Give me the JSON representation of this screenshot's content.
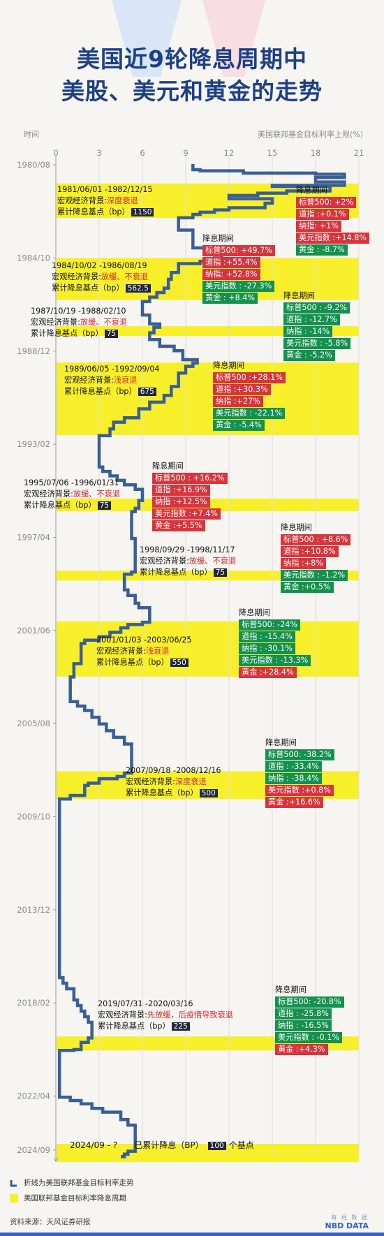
{
  "title_lines": [
    "美国近9轮降息周期中",
    "美股、美元和黄金的走势"
  ],
  "y_axis_label": "时间",
  "x_axis_label": "美国联邦基金目标利率上限(%)",
  "legend": {
    "line": "折线为美国联邦基金目标利率走势",
    "band": "美国联邦基金目标利率降息周期"
  },
  "source": "资料来源：天风证券研报",
  "brand": {
    "cn": "每 经 数 据",
    "en": "NBD DATA"
  },
  "colors": {
    "line": "#3a5e97",
    "band": "#f7ef2a",
    "up": "#d8343c",
    "down": "#14914e",
    "title": "#1c3f87"
  },
  "cycles": [
    {
      "period": "1981/06/01 -1982/12/15",
      "bg_prefix": "宏观经济背景:",
      "bg": "深度衰退",
      "bp_label": "累计降息基点（bp）",
      "bp": "1150"
    },
    {
      "period": "1984/10/02 -1986/08/19",
      "bg_prefix": "宏观经济背景:",
      "bg": "放缓、不衰退",
      "bp_label": "累计降息基点（bp）",
      "bp": "562.5"
    },
    {
      "period": "1987/10/19 -1988/02/10",
      "bg_prefix": "宏观经济背景:",
      "bg": "放缓、不衰退",
      "bp_label": "累计降息基点（bp）",
      "bp": "75"
    },
    {
      "period": "1989/06/05 -1992/09/04",
      "bg_prefix": "宏观经济背景:",
      "bg": "浅衰退",
      "bp_label": "累计降息基点（bp）",
      "bp": "675"
    },
    {
      "period": "1995/07/06 -1996/01/31",
      "bg_prefix": "宏观经济背景:",
      "bg": "放缓、不衰退",
      "bp_label": "累计降息基点（bp）",
      "bp": "75"
    },
    {
      "period": "1998/09/29 -1998/11/17",
      "bg_prefix": "宏观经济背景:",
      "bg": "放缓、不衰退",
      "bp_label": "累计降息基点（bp）",
      "bp": "75"
    },
    {
      "period": "2001/01/03 -2003/06/25",
      "bg_prefix": "宏观经济背景:",
      "bg": "浅衰退",
      "bp_label": "累计降息基点（bp）",
      "bp": "550"
    },
    {
      "period": "2007/09/18 -2008/12/16",
      "bg_prefix": "宏观经济背景:",
      "bg": "深度衰退",
      "bp_label": "累计降息基点（bp）",
      "bp": "500"
    },
    {
      "period": "2019/07/31 -2020/03/16",
      "bg_prefix": "宏观经济背景:",
      "bg": "先放缓，后疫情导致衰退",
      "bp_label": "累计降息基点（bp）",
      "bp": "225"
    }
  ],
  "current": {
    "period": "2024/09 - ?",
    "label": "已累计降息（BP）",
    "bp": "100",
    "suffix": "个基点"
  },
  "perf_heading": "降息期间",
  "performance": [
    [
      {
        "t": "标普500: +2%",
        "up": true
      },
      {
        "t": "道指 :+0.1%",
        "up": true
      },
      {
        "t": "纳指: +1%",
        "up": true
      },
      {
        "t": "美元指数 :+14.8%",
        "up": true
      },
      {
        "t": "黄金 : -8.7%",
        "up": false
      }
    ],
    [
      {
        "t": "标普500: +49.7%",
        "up": true
      },
      {
        "t": "道指 :+55.4%",
        "up": true
      },
      {
        "t": "纳指: +52.8%",
        "up": true
      },
      {
        "t": "美元指数 : -27.3%",
        "up": false
      },
      {
        "t": "黄金 : +8.4%",
        "up": false
      }
    ],
    [
      {
        "t": "标普500 : -9.2%",
        "up": false
      },
      {
        "t": "道指 : -12.7%",
        "up": false
      },
      {
        "t": "纳指 : -14%",
        "up": false
      },
      {
        "t": "美元指数 : -5.8%",
        "up": false
      },
      {
        "t": "黄金 : -5.2%",
        "up": false
      }
    ],
    [
      {
        "t": "标普500 :+28.1%",
        "up": true
      },
      {
        "t": "道指 :+30.3%",
        "up": true
      },
      {
        "t": "纳指 :+27%",
        "up": true
      },
      {
        "t": "美元指数 : -22.1%",
        "up": false
      },
      {
        "t": "黄金 : -5.4%",
        "up": false
      }
    ],
    [
      {
        "t": "标普500 : +16.2%",
        "up": true
      },
      {
        "t": "道指 :+16.9%",
        "up": true
      },
      {
        "t": "纳指 :+12.5%",
        "up": true
      },
      {
        "t": "美元指数 :+7.4%",
        "up": true
      },
      {
        "t": "黄金 :+5.5%",
        "up": true
      }
    ],
    [
      {
        "t": "标普500 : +8.6%",
        "up": true
      },
      {
        "t": "道指 :+10.8%",
        "up": true
      },
      {
        "t": "纳指 :+8%",
        "up": true
      },
      {
        "t": "美元指数 : -1.2%",
        "up": false
      },
      {
        "t": "黄金 :+0.5%",
        "up": false
      }
    ],
    [
      {
        "t": "标普500: -24%",
        "up": false
      },
      {
        "t": "道指 : -15.4%",
        "up": false
      },
      {
        "t": "纳指 : -30.1%",
        "up": false
      },
      {
        "t": "美元指数 : -13.3%",
        "up": false
      },
      {
        "t": "黄金 :+28.4%",
        "up": true
      }
    ],
    [
      {
        "t": "标普500: -38.2%",
        "up": false
      },
      {
        "t": "道指 : -33.4%",
        "up": false
      },
      {
        "t": "纳指 : -38.4%",
        "up": false
      },
      {
        "t": "美元指数 :+0.8%",
        "up": true
      },
      {
        "t": "黄金 :+16.6%",
        "up": true
      }
    ],
    [
      {
        "t": "标普500: -20.8%",
        "up": false
      },
      {
        "t": "道指 : -25.8%",
        "up": false
      },
      {
        "t": "纳指 : -16.5%",
        "up": false
      },
      {
        "t": "美元指数 : -0.1%",
        "up": false
      },
      {
        "t": "黄金 :+4.3%",
        "up": true
      }
    ]
  ],
  "chart_data": {
    "type": "line",
    "orientation": "vertical",
    "xlabel": "美国联邦基金目标利率上限(%)",
    "ylabel": "时间",
    "xlim": [
      0,
      21
    ],
    "x_ticks": [
      0,
      3,
      6,
      9,
      12,
      15,
      18,
      21
    ],
    "y_ticks": [
      "1980/08",
      "1984/10",
      "1988/12",
      "1993/02",
      "1997/04",
      "2001/06",
      "2005/08",
      "2009/10",
      "2013/12",
      "2018/02",
      "2022/04",
      "2024/09"
    ],
    "rate_series": [
      [
        1980.55,
        9.5
      ],
      [
        1980.8,
        10.0
      ],
      [
        1980.85,
        13.0
      ],
      [
        1980.95,
        18.0
      ],
      [
        1981.0,
        20.0
      ],
      [
        1981.15,
        18.0
      ],
      [
        1981.35,
        20.0
      ],
      [
        1981.5,
        15.0
      ],
      [
        1981.55,
        19.0
      ],
      [
        1981.75,
        16.0
      ],
      [
        1981.85,
        14.0
      ],
      [
        1981.95,
        12.0
      ],
      [
        1982.1,
        15.0
      ],
      [
        1982.3,
        14.5
      ],
      [
        1982.5,
        12.0
      ],
      [
        1982.6,
        11.0
      ],
      [
        1982.7,
        10.0
      ],
      [
        1982.8,
        9.5
      ],
      [
        1982.95,
        8.5
      ],
      [
        1983.2,
        8.5
      ],
      [
        1983.5,
        9.5
      ],
      [
        1983.9,
        9.5
      ],
      [
        1984.3,
        10.5
      ],
      [
        1984.55,
        11.5
      ],
      [
        1984.75,
        11.0
      ],
      [
        1984.9,
        10.0
      ],
      [
        1985.0,
        8.5
      ],
      [
        1985.4,
        8.0
      ],
      [
        1985.7,
        7.8
      ],
      [
        1986.1,
        7.5
      ],
      [
        1986.3,
        7.0
      ],
      [
        1986.5,
        6.5
      ],
      [
        1986.7,
        6.0
      ],
      [
        1987.0,
        6.0
      ],
      [
        1987.3,
        6.5
      ],
      [
        1987.7,
        7.2
      ],
      [
        1987.85,
        6.8
      ],
      [
        1988.1,
        6.5
      ],
      [
        1988.4,
        7.2
      ],
      [
        1988.7,
        8.2
      ],
      [
        1988.9,
        8.8
      ],
      [
        1989.3,
        9.8
      ],
      [
        1989.45,
        9.5
      ],
      [
        1989.6,
        9.0
      ],
      [
        1989.9,
        8.5
      ],
      [
        1990.5,
        8.0
      ],
      [
        1990.9,
        7.5
      ],
      [
        1991.2,
        6.5
      ],
      [
        1991.5,
        5.75
      ],
      [
        1991.9,
        4.75
      ],
      [
        1992.1,
        4.0
      ],
      [
        1992.4,
        3.75
      ],
      [
        1992.7,
        3.0
      ],
      [
        1993.5,
        3.0
      ],
      [
        1994.1,
        3.25
      ],
      [
        1994.3,
        3.75
      ],
      [
        1994.5,
        4.25
      ],
      [
        1994.7,
        4.75
      ],
      [
        1994.9,
        5.5
      ],
      [
        1995.1,
        6.0
      ],
      [
        1995.5,
        6.0
      ],
      [
        1995.6,
        5.75
      ],
      [
        1995.95,
        5.5
      ],
      [
        1996.1,
        5.25
      ],
      [
        1997.2,
        5.25
      ],
      [
        1997.3,
        5.5
      ],
      [
        1998.7,
        5.5
      ],
      [
        1998.8,
        5.25
      ],
      [
        1998.9,
        4.75
      ],
      [
        1999.5,
        4.75
      ],
      [
        1999.6,
        5.0
      ],
      [
        1999.85,
        5.5
      ],
      [
        2000.2,
        5.75
      ],
      [
        2000.4,
        6.5
      ],
      [
        2000.95,
        6.5
      ],
      [
        2001.05,
        6.0
      ],
      [
        2001.15,
        5.0
      ],
      [
        2001.3,
        4.5
      ],
      [
        2001.5,
        3.75
      ],
      [
        2001.7,
        3.0
      ],
      [
        2001.85,
        2.0
      ],
      [
        2002.0,
        1.75
      ],
      [
        2002.9,
        1.25
      ],
      [
        2003.5,
        1.0
      ],
      [
        2004.4,
        1.0
      ],
      [
        2004.6,
        1.5
      ],
      [
        2004.8,
        2.0
      ],
      [
        2005.0,
        2.5
      ],
      [
        2005.3,
        3.0
      ],
      [
        2005.6,
        3.5
      ],
      [
        2005.9,
        4.0
      ],
      [
        2006.2,
        4.75
      ],
      [
        2006.5,
        5.25
      ],
      [
        2007.65,
        5.25
      ],
      [
        2007.8,
        4.75
      ],
      [
        2007.95,
        4.25
      ],
      [
        2008.05,
        3.0
      ],
      [
        2008.25,
        2.25
      ],
      [
        2008.35,
        2.0
      ],
      [
        2008.8,
        1.0
      ],
      [
        2008.96,
        0.25
      ],
      [
        2015.95,
        0.25
      ],
      [
        2016.95,
        0.5
      ],
      [
        2017.2,
        0.75
      ],
      [
        2017.45,
        1.25
      ],
      [
        2017.95,
        1.5
      ],
      [
        2018.2,
        1.75
      ],
      [
        2018.45,
        2.0
      ],
      [
        2018.7,
        2.25
      ],
      [
        2018.95,
        2.5
      ],
      [
        2019.55,
        2.5
      ],
      [
        2019.65,
        2.25
      ],
      [
        2019.85,
        1.75
      ],
      [
        2020.17,
        1.25
      ],
      [
        2020.21,
        0.25
      ],
      [
        2022.2,
        0.25
      ],
      [
        2022.3,
        1.0
      ],
      [
        2022.45,
        1.75
      ],
      [
        2022.6,
        2.5
      ],
      [
        2022.8,
        3.25
      ],
      [
        2022.97,
        4.5
      ],
      [
        2023.3,
        5.0
      ],
      [
        2023.55,
        5.5
      ],
      [
        2024.7,
        5.5
      ],
      [
        2024.72,
        5.0
      ],
      [
        2024.85,
        4.75
      ],
      [
        2024.96,
        4.5
      ]
    ],
    "easing_cycles": [
      {
        "start": "1981/06/01",
        "end": "1982/12/15",
        "bp": 1150,
        "background": "深度衰退"
      },
      {
        "start": "1984/10/02",
        "end": "1986/08/19",
        "bp": 562.5,
        "background": "放缓、不衰退"
      },
      {
        "start": "1987/10/19",
        "end": "1988/02/10",
        "bp": 75,
        "background": "放缓、不衰退"
      },
      {
        "start": "1989/06/05",
        "end": "1992/09/04",
        "bp": 675,
        "background": "浅衰退"
      },
      {
        "start": "1995/07/06",
        "end": "1996/01/31",
        "bp": 75,
        "background": "放缓、不衰退"
      },
      {
        "start": "1998/09/29",
        "end": "1998/11/17",
        "bp": 75,
        "background": "放缓、不衰退"
      },
      {
        "start": "2001/01/03",
        "end": "2003/06/25",
        "bp": 550,
        "background": "浅衰退"
      },
      {
        "start": "2007/09/18",
        "end": "2008/12/16",
        "bp": 500,
        "background": "深度衰退"
      },
      {
        "start": "2019/07/31",
        "end": "2020/03/16",
        "bp": 225,
        "background": "先放缓，后疫情导致衰退"
      },
      {
        "start": "2024/09",
        "end": "?",
        "bp": 100,
        "background": ""
      }
    ]
  }
}
